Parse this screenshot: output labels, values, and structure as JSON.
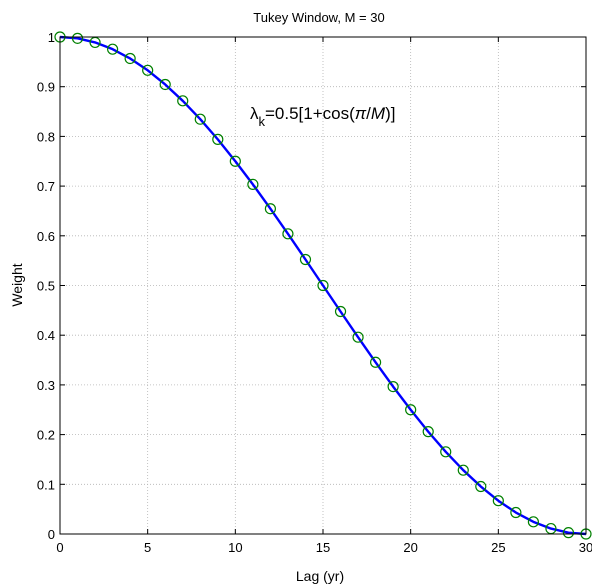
{
  "chart_data": {
    "type": "line",
    "title": "Tukey Window, M = 30",
    "xlabel": "Lag (yr)",
    "ylabel": "Weight",
    "xlim": [
      0,
      30
    ],
    "ylim": [
      0,
      1
    ],
    "grid": true,
    "x_ticks": [
      0,
      5,
      10,
      15,
      20,
      25,
      30
    ],
    "y_ticks": [
      0,
      0.1,
      0.2,
      0.3,
      0.4,
      0.5,
      0.6,
      0.7,
      0.8,
      0.9,
      1
    ],
    "annotation": {
      "lambda": "λ",
      "sub": "k",
      "mid": "=0.5[1+cos(",
      "pi": "π",
      "slash": "/",
      "m": "M",
      "end": ")]"
    },
    "series": [
      {
        "style": "line",
        "color": "#0000ff",
        "x": [
          0,
          1,
          2,
          3,
          4,
          5,
          6,
          7,
          8,
          9,
          10,
          11,
          12,
          13,
          14,
          15,
          16,
          17,
          18,
          19,
          20,
          21,
          22,
          23,
          24,
          25,
          26,
          27,
          28,
          29,
          30
        ],
        "y": [
          1.0,
          0.9973,
          0.9891,
          0.9755,
          0.9568,
          0.933,
          0.9045,
          0.8716,
          0.8346,
          0.794,
          0.75,
          0.7034,
          0.6545,
          0.604,
          0.5523,
          0.5,
          0.4477,
          0.396,
          0.3455,
          0.2966,
          0.25,
          0.206,
          0.1654,
          0.1284,
          0.0955,
          0.067,
          0.0432,
          0.0245,
          0.0109,
          0.0027,
          0.0
        ]
      },
      {
        "style": "markers",
        "marker": "circle",
        "color": "#008000",
        "x": [
          0,
          1,
          2,
          3,
          4,
          5,
          6,
          7,
          8,
          9,
          10,
          11,
          12,
          13,
          14,
          15,
          16,
          17,
          18,
          19,
          20,
          21,
          22,
          23,
          24,
          25,
          26,
          27,
          28,
          29,
          30
        ],
        "y": [
          1.0,
          0.9973,
          0.9891,
          0.9755,
          0.9568,
          0.933,
          0.9045,
          0.8716,
          0.8346,
          0.794,
          0.75,
          0.7034,
          0.6545,
          0.604,
          0.5523,
          0.5,
          0.4477,
          0.396,
          0.3455,
          0.2966,
          0.25,
          0.206,
          0.1654,
          0.1284,
          0.0955,
          0.067,
          0.0432,
          0.0245,
          0.0109,
          0.0027,
          0.0
        ]
      }
    ]
  }
}
